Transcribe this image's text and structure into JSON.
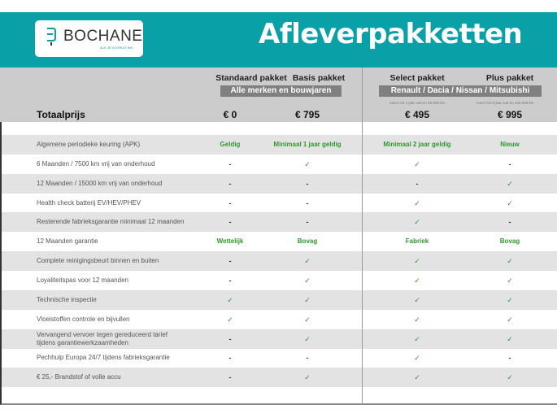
{
  "header": {
    "logo_text": "BOCHANE",
    "logo_tagline": "ALS JE VOORUIT WIL",
    "title": "Afleverpakketten",
    "brand_color": "#0aa0a8"
  },
  "packages": [
    {
      "name": "Standaard pakket",
      "price": "€ 0",
      "note": ""
    },
    {
      "name": "Basis pakket",
      "price": "€ 795",
      "note": ""
    },
    {
      "name": "Select pakket",
      "price": "€ 495",
      "note": "Auto's tot 1 jaar oud en 20.000 km"
    },
    {
      "name": "Plus pakket",
      "price": "€ 995",
      "note": "Auto's tot 5 jaar oud en 100.000 km"
    }
  ],
  "bands": {
    "left": "Alle merken en bouwjaren",
    "right": "Renault / Dacia / Nissan / Mitsubishi"
  },
  "total_label": "Totaalprijs",
  "rows": [
    {
      "label": "Algemene periodieke keuring (APK)",
      "values": [
        "Geldig",
        "Minimaal 1 jaar geldig",
        "Minimaal 2 jaar geldig",
        "Nieuw"
      ]
    },
    {
      "label": "6 Maanden / 7500 km vrij van onderhoud",
      "values": [
        "-",
        "✓",
        "✓",
        "-"
      ]
    },
    {
      "label": "12 Maanden / 15000 km vrij van onderhoud",
      "values": [
        "-",
        "-",
        "-",
        "✓"
      ]
    },
    {
      "label": "Health check batterij EV/HEV/PHEV",
      "values": [
        "-",
        "-",
        "✓",
        "✓"
      ]
    },
    {
      "label": "Resterende fabrieksgarantie minimaal 12 maanden",
      "values": [
        "-",
        "-",
        "✓",
        "-"
      ]
    },
    {
      "label": "12 Maanden  garantie",
      "values": [
        "Wettelijk",
        "Bovag",
        "Fabriek",
        "Bovag"
      ]
    },
    {
      "label": "Complete reinigingsbeurt binnen en buiten",
      "values": [
        "-",
        "✓",
        "✓",
        "✓"
      ]
    },
    {
      "label": "Loyaliteitspas voor 12 maanden",
      "values": [
        "-",
        "✓",
        "✓",
        "✓"
      ]
    },
    {
      "label": "Technische inspectie",
      "values": [
        "✓",
        "✓",
        "✓",
        "✓"
      ]
    },
    {
      "label": "Vloeistoffen controle en bijvullen",
      "values": [
        "✓",
        "✓",
        "✓",
        "✓"
      ]
    },
    {
      "label": "Vervangend vervoer tegen gereduceerd tarief tijdens garantiewerkzaamheden",
      "values": [
        "-",
        "✓",
        "✓",
        "✓"
      ]
    },
    {
      "label": "Pechhulp Europa 24/7 tijdens fabrieksgarantie",
      "values": [
        "-",
        "-",
        "✓",
        "-"
      ]
    },
    {
      "label": "€ 25,- Brandstof of  volle accu",
      "values": [
        "-",
        "✓",
        "✓",
        "✓"
      ]
    }
  ]
}
